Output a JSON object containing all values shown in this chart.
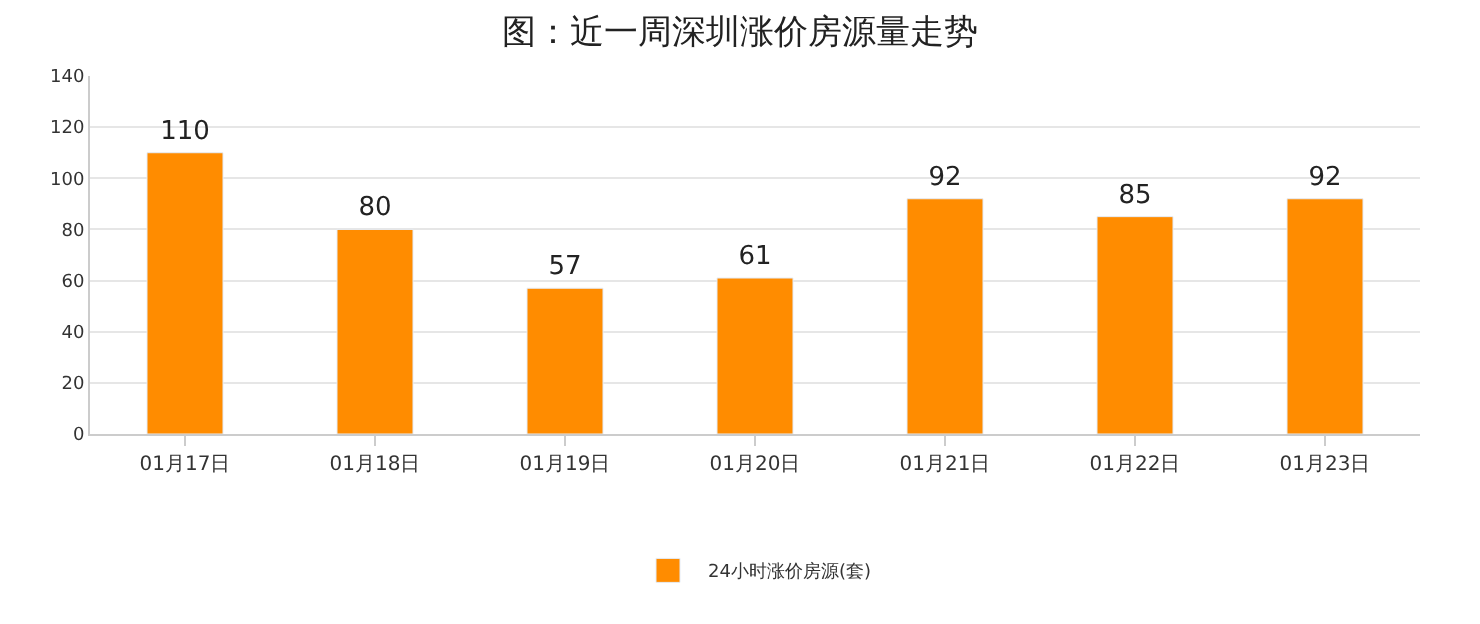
{
  "chart_data": {
    "type": "bar",
    "title": "图：近一周深圳涨价房源量走势",
    "categories": [
      "01月17日",
      "01月18日",
      "01月19日",
      "01月20日",
      "01月21日",
      "01月22日",
      "01月23日"
    ],
    "series": [
      {
        "name": "24小时涨价房源(套)",
        "color": "#ff8c00",
        "values": [
          110,
          80,
          57,
          61,
          92,
          85,
          92
        ]
      }
    ],
    "ylim": [
      0,
      140
    ],
    "yticks": [
      0,
      20,
      40,
      60,
      80,
      100,
      120,
      140
    ],
    "grid": "y",
    "legend": "bottom",
    "data_labels": true
  }
}
